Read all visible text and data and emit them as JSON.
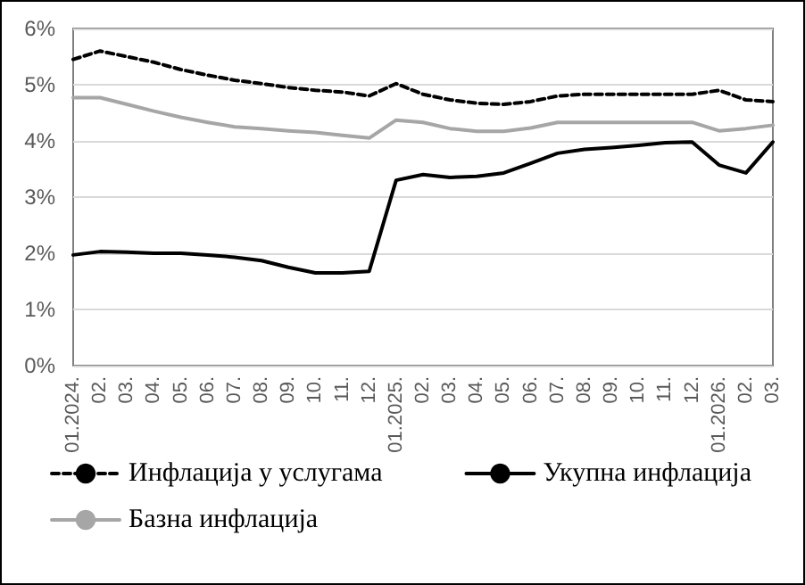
{
  "chart_data": {
    "type": "line",
    "categories": [
      "01.2024.",
      "02.",
      "03.",
      "04.",
      "05.",
      "06.",
      "07.",
      "08.",
      "09.",
      "10.",
      "11.",
      "12.",
      "01.2025.",
      "02.",
      "03.",
      "04.",
      "05.",
      "06.",
      "07.",
      "08.",
      "09.",
      "10.",
      "11.",
      "12.",
      "01.2026.",
      "02.",
      "03."
    ],
    "series": [
      {
        "name": "Инфлација у услугама",
        "color": "#000000",
        "line_style": "dashed",
        "values": [
          5.45,
          5.6,
          5.5,
          5.4,
          5.27,
          5.17,
          5.08,
          5.02,
          4.95,
          4.9,
          4.87,
          4.8,
          5.02,
          4.83,
          4.73,
          4.67,
          4.65,
          4.7,
          4.8,
          4.83,
          4.83,
          4.83,
          4.83,
          4.83,
          4.9,
          4.73,
          4.7
        ]
      },
      {
        "name": "Укупна инфлација",
        "color": "#000000",
        "line_style": "solid",
        "values": [
          1.97,
          2.03,
          2.02,
          2.0,
          2.0,
          1.97,
          1.93,
          1.87,
          1.75,
          1.65,
          1.65,
          1.68,
          3.3,
          3.4,
          3.35,
          3.37,
          3.43,
          3.6,
          3.78,
          3.85,
          3.88,
          3.92,
          3.97,
          3.98,
          3.57,
          3.43,
          3.98
        ]
      },
      {
        "name": "Базна инфлација",
        "color": "#a6a6a6",
        "line_style": "solid",
        "values": [
          4.77,
          4.77,
          4.65,
          4.53,
          4.42,
          4.33,
          4.25,
          4.22,
          4.18,
          4.15,
          4.1,
          4.05,
          4.37,
          4.33,
          4.22,
          4.17,
          4.17,
          4.23,
          4.33,
          4.33,
          4.33,
          4.33,
          4.33,
          4.33,
          4.18,
          4.22,
          4.28
        ]
      }
    ],
    "ylim": [
      0,
      6
    ],
    "yticks": [
      {
        "value": 0,
        "label": "0%"
      },
      {
        "value": 1,
        "label": "1%"
      },
      {
        "value": 2,
        "label": "2%"
      },
      {
        "value": 3,
        "label": "3%"
      },
      {
        "value": 4,
        "label": "4%"
      },
      {
        "value": 5,
        "label": "5%"
      },
      {
        "value": 6,
        "label": "6%"
      }
    ],
    "grid": "y",
    "legend": "bottom",
    "marker": "none"
  }
}
